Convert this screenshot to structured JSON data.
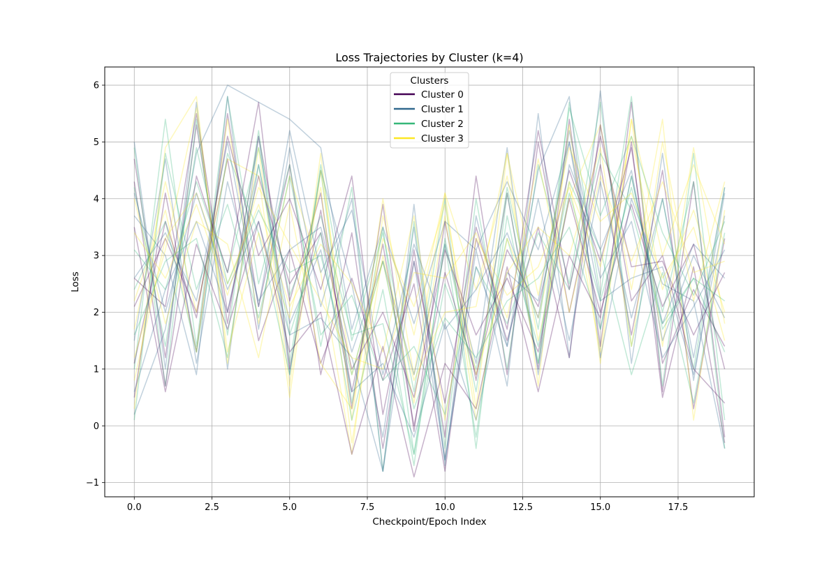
{
  "chart_data": {
    "type": "line",
    "title": "Loss Trajectories by Cluster (k=4)",
    "xlabel": "Checkpoint/Epoch Index",
    "ylabel": "Loss",
    "xlim": [
      -0.95,
      19.95
    ],
    "ylim": [
      -1.25,
      6.32
    ],
    "x_ticks": [
      0,
      2.5,
      5,
      7.5,
      10,
      12.5,
      15,
      17.5
    ],
    "x_tick_labels": [
      "0.0",
      "2.5",
      "5.0",
      "7.5",
      "10.0",
      "12.5",
      "15.0",
      "17.5"
    ],
    "y_ticks": [
      -1,
      0,
      1,
      2,
      3,
      4,
      5,
      6
    ],
    "y_tick_labels": [
      "−1",
      "0",
      "1",
      "2",
      "3",
      "4",
      "5",
      "6"
    ],
    "grid": true,
    "legend": {
      "title": "Clusters",
      "placement": "upper center"
    },
    "x": [
      0,
      1,
      2,
      3,
      4,
      5,
      6,
      7,
      8,
      9,
      10,
      11,
      12,
      13,
      14,
      15,
      16,
      17,
      18,
      19
    ],
    "series": [
      {
        "name": "Cluster 0",
        "color": "#440154",
        "alpha": 0.3,
        "trajectories": [
          [
            4.7,
            1.2,
            5.3,
            1.8,
            5.1,
            2.2,
            4.1,
            0.3,
            3.9,
            -0.1,
            3.6,
            0.8,
            4.1,
            1.0,
            5.4,
            1.4,
            5.7,
            0.6,
            4.3,
            -0.2
          ],
          [
            0.5,
            4.1,
            1.3,
            5.5,
            2.1,
            4.6,
            0.9,
            3.4,
            -0.4,
            3.1,
            -0.2,
            4.4,
            0.9,
            5.0,
            2.0,
            4.6,
            1.6,
            4.5,
            0.3,
            3.3
          ],
          [
            2.1,
            3.3,
            2.0,
            4.7,
            1.5,
            3.1,
            1.1,
            2.6,
            0.8,
            2.5,
            -0.8,
            3.3,
            1.5,
            3.5,
            1.2,
            5.3,
            2.2,
            3.0,
            1.0,
            0.4
          ],
          [
            4.3,
            0.7,
            4.4,
            2.7,
            5.7,
            1.0,
            3.8,
            0.6,
            3.2,
            0.0,
            2.7,
            0.9,
            3.1,
            2.1,
            4.5,
            2.9,
            4.9,
            1.1,
            2.4,
            1.4
          ],
          [
            1.1,
            3.6,
            1.9,
            5.1,
            3.0,
            4.0,
            2.4,
            4.4,
            0.2,
            2.9,
            0.4,
            3.5,
            1.7,
            5.2,
            2.4,
            5.1,
            2.8,
            2.9,
            1.6,
            2.7
          ],
          [
            2.6,
            2.1,
            5.5,
            2.0,
            4.4,
            2.5,
            3.4,
            1.0,
            2.0,
            0.5,
            3.1,
            1.6,
            2.6,
            1.3,
            4.0,
            2.0,
            3.9,
            2.1,
            3.2,
            1.0
          ],
          [
            3.5,
            0.6,
            3.2,
            1.7,
            3.6,
            1.3,
            2.0,
            -0.5,
            1.4,
            -0.9,
            1.1,
            0.3,
            2.8,
            0.6,
            3.0,
            1.9,
            5.0,
            0.5,
            2.8,
            -0.3
          ]
        ]
      },
      {
        "name": "Cluster 1",
        "color": "#31688e",
        "alpha": 0.3,
        "trajectories": [
          [
            5.0,
            1.0,
            5.7,
            1.0,
            5.1,
            0.9,
            4.5,
            2.5,
            -0.2,
            3.5,
            -0.6,
            3.1,
            0.7,
            5.5,
            1.2,
            5.9,
            1.1,
            4.8,
            0.8,
            4.1
          ],
          [
            0.2,
            1.7,
            4.8,
            6.0,
            5.7,
            5.4,
            4.9,
            1.7,
            3.5,
            1.8,
            3.6,
            3.1,
            4.3,
            3.1,
            5.0,
            2.2,
            2.6,
            2.8,
            0.9,
            3.7
          ],
          [
            3.7,
            3.0,
            0.9,
            5.8,
            1.7,
            4.9,
            2.1,
            4.0,
            -0.8,
            3.9,
            -0.7,
            3.7,
            1.4,
            4.5,
            5.8,
            1.2,
            4.0,
            2.5,
            2.2,
            -0.4
          ],
          [
            1.5,
            4.7,
            1.1,
            4.3,
            2.2,
            3.1,
            3.5,
            1.3,
            2.9,
            0.9,
            3.2,
            1.1,
            4.9,
            0.9,
            4.6,
            3.1,
            4.5,
            1.5,
            3.0,
            1.9
          ],
          [
            0.6,
            2.4,
            3.6,
            2.0,
            4.6,
            1.8,
            3.1,
            0.6,
            1.1,
            -0.2,
            1.8,
            0.1,
            2.7,
            2.2,
            5.0,
            1.7,
            4.4,
            1.8,
            3.2,
            2.6
          ],
          [
            2.6,
            3.4,
            2.2,
            5.0,
            2.1,
            5.2,
            2.7,
            3.8,
            0.9,
            3.2,
            1.7,
            2.4,
            3.4,
            1.9,
            5.2,
            2.6,
            3.6,
            1.2,
            2.1,
            3.1
          ],
          [
            4.1,
            2.0,
            4.1,
            2.4,
            3.6,
            1.6,
            1.9,
            1.2,
            -0.8,
            2.9,
            -0.6,
            2.8,
            1.4,
            4.0,
            1.5,
            4.3,
            1.9,
            4.0,
            1.2,
            4.2
          ]
        ]
      },
      {
        "name": "Cluster 2",
        "color": "#35b779",
        "alpha": 0.3,
        "trajectories": [
          [
            4.9,
            0.7,
            5.4,
            1.6,
            5.2,
            1.1,
            4.5,
            0.4,
            3.5,
            -0.5,
            3.2,
            -0.2,
            3.7,
            1.1,
            5.7,
            2.3,
            5.8,
            0.7,
            4.8,
            0.1
          ],
          [
            1.0,
            5.4,
            1.4,
            5.8,
            2.5,
            4.6,
            1.4,
            4.2,
            -0.8,
            3.6,
            -0.4,
            4.0,
            1.0,
            4.6,
            2.5,
            5.7,
            1.4,
            4.0,
            1.0,
            4.2
          ],
          [
            3.1,
            2.4,
            4.3,
            2.7,
            4.9,
            2.3,
            3.7,
            1.6,
            1.8,
            -0.5,
            2.5,
            1.0,
            3.3,
            1.4,
            4.3,
            3.1,
            0.9,
            2.7,
            0.4,
            3.4
          ],
          [
            0.1,
            4.8,
            2.4,
            3.9,
            1.9,
            4.4,
            1.6,
            2.3,
            0.8,
            1.4,
            0.2,
            2.8,
            1.8,
            3.4,
            2.4,
            4.8,
            3.8,
            1.8,
            2.6,
            1.3
          ],
          [
            2.4,
            3.6,
            1.3,
            4.8,
            3.4,
            0.9,
            4.6,
            1.5,
            3.4,
            0.6,
            4.0,
            -0.4,
            4.1,
            1.1,
            4.1,
            2.2,
            4.2,
            2.0,
            4.3,
            -0.4
          ],
          [
            4.2,
            1.4,
            4.9,
            2.5,
            3.8,
            2.7,
            3.0,
            0.9,
            2.9,
            0.3,
            1.9,
            1.2,
            2.2,
            2.6,
            3.5,
            1.7,
            4.4,
            1.7,
            2.6,
            2.2
          ],
          [
            1.6,
            2.9,
            3.3,
            1.2,
            4.6,
            1.6,
            3.4,
            0.1,
            2.4,
            -0.7,
            3.3,
            0.6,
            4.2,
            1.7,
            5.6,
            3.7,
            5.1,
            3.4,
            2.3,
            3.6
          ]
        ]
      },
      {
        "name": "Cluster 3",
        "color": "#fde725",
        "alpha": 0.3,
        "trajectories": [
          [
            0.3,
            4.9,
            5.8,
            1.1,
            4.9,
            0.7,
            4.8,
            0.1,
            4.0,
            0.9,
            4.1,
            0.3,
            4.8,
            0.7,
            5.3,
            1.1,
            5.4,
            1.4,
            4.9,
            1.8
          ],
          [
            2.2,
            3.8,
            1.3,
            5.4,
            1.8,
            4.4,
            2.7,
            -0.5,
            3.7,
            1.6,
            4.1,
            2.4,
            4.4,
            1.5,
            4.0,
            5.3,
            2.4,
            5.4,
            0.1,
            3.8
          ],
          [
            1.7,
            4.3,
            2.0,
            4.7,
            4.4,
            0.5,
            4.5,
            0.9,
            2.9,
            0.4,
            3.7,
            0.1,
            3.3,
            1.9,
            4.3,
            1.3,
            5.4,
            3.0,
            4.6,
            3.2
          ],
          [
            0.8,
            3.3,
            4.1,
            2.5,
            3.9,
            2.1,
            3.2,
            2.5,
            1.3,
            3.7,
            0.1,
            3.3,
            2.3,
            2.8,
            4.2,
            2.8,
            5.1,
            2.4,
            3.8,
            2.0
          ],
          [
            4.0,
            1.8,
            3.6,
            3.2,
            1.2,
            3.9,
            1.1,
            0.3,
            3.3,
            2.1,
            3.9,
            0.9,
            2.7,
            3.5,
            3.0,
            4.9,
            1.4,
            5.0,
            2.2,
            4.3
          ],
          [
            1.2,
            3.1,
            5.6,
            1.3,
            3.4,
            1.9,
            4.2,
            -0.3,
            3.0,
            0.8,
            2.0,
            2.1,
            4.8,
            2.3,
            4.9,
            3.6,
            4.1,
            2.6,
            3.5,
            1.5
          ],
          [
            3.4,
            2.6,
            3.9,
            2.3,
            4.2,
            3.2,
            2.2,
            1.2,
            1.0,
            2.7,
            2.6,
            3.4,
            1.9,
            4.7,
            2.0,
            4.4,
            2.9,
            4.3,
            2.7,
            2.9
          ]
        ]
      }
    ]
  }
}
